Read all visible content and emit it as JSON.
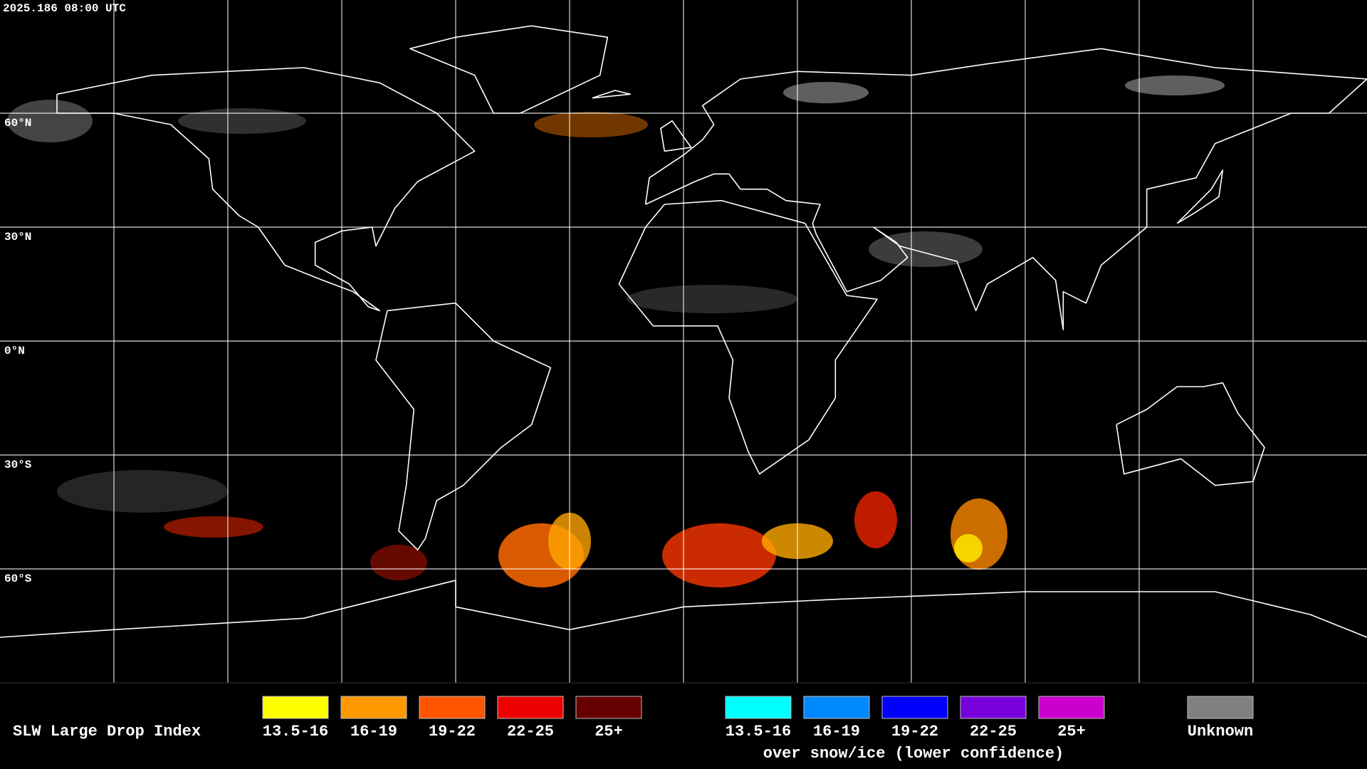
{
  "header": {
    "timestamp": "2025.186 08:00 UTC"
  },
  "grid": {
    "lat_labels": [
      "60°N",
      "30°N",
      "0°N",
      "30°S",
      "60°S"
    ]
  },
  "legend": {
    "title": "SLW Large Drop Index",
    "liquid": [
      {
        "label": "13.5-16",
        "color": "#ffff00"
      },
      {
        "label": "16-19",
        "color": "#ff9900"
      },
      {
        "label": "19-22",
        "color": "#ff5500"
      },
      {
        "label": "22-25",
        "color": "#ee0000"
      },
      {
        "label": "25+",
        "color": "#660000"
      }
    ],
    "snow_ice": [
      {
        "label": "13.5-16",
        "color": "#00ffff"
      },
      {
        "label": "16-19",
        "color": "#0088ff"
      },
      {
        "label": "19-22",
        "color": "#0000ff"
      },
      {
        "label": "22-25",
        "color": "#7700dd"
      },
      {
        "label": "25+",
        "color": "#cc00cc"
      }
    ],
    "snow_ice_caption": "over snow/ice (lower confidence)",
    "unknown": {
      "label": "Unknown",
      "color": "#808080"
    }
  }
}
